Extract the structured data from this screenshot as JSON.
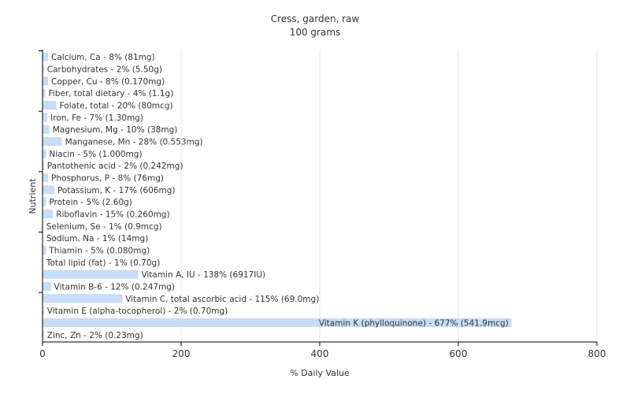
{
  "chart_data": {
    "type": "bar",
    "orientation": "horizontal",
    "title": "Cress, garden, raw",
    "subtitle": "100 grams",
    "xlabel": "% Daily Value",
    "ylabel": "Nutrient",
    "xlim": [
      0,
      800
    ],
    "xticks": [
      0,
      200,
      400,
      600,
      800
    ],
    "grid": true,
    "bar_color": "#c6dcf7",
    "categories": [
      "Calcium, Ca - 8% (81mg)",
      "Carbohydrates - 2% (5.50g)",
      "Copper, Cu - 8% (0.170mg)",
      "Fiber, total dietary - 4% (1.1g)",
      "Folate, total - 20% (80mcg)",
      "Iron, Fe - 7% (1.30mg)",
      "Magnesium, Mg - 10% (38mg)",
      "Manganese, Mn - 28% (0.553mg)",
      "Niacin - 5% (1.000mg)",
      "Pantothenic acid - 2% (0.242mg)",
      "Phosphorus, P - 8% (76mg)",
      "Potassium, K - 17% (606mg)",
      "Protein - 5% (2.60g)",
      "Riboflavin - 15% (0.260mg)",
      "Selenium, Se - 1% (0.9mcg)",
      "Sodium, Na - 1% (14mg)",
      "Thiamin - 5% (0.080mg)",
      "Total lipid (fat) - 1% (0.70g)",
      "Vitamin A, IU - 138% (6917IU)",
      "Vitamin B-6 - 12% (0.247mg)",
      "Vitamin C, total ascorbic acid - 115% (69.0mg)",
      "Vitamin E (alpha-tocopherol) - 2% (0.70mg)",
      "Vitamin K (phylloquinone) - 677% (541.9mcg)",
      "Zinc, Zn - 2% (0.23mg)"
    ],
    "values": [
      8,
      2,
      8,
      4,
      20,
      7,
      10,
      28,
      5,
      2,
      8,
      17,
      5,
      15,
      1,
      1,
      5,
      1,
      138,
      12,
      115,
      2,
      677,
      2
    ]
  }
}
